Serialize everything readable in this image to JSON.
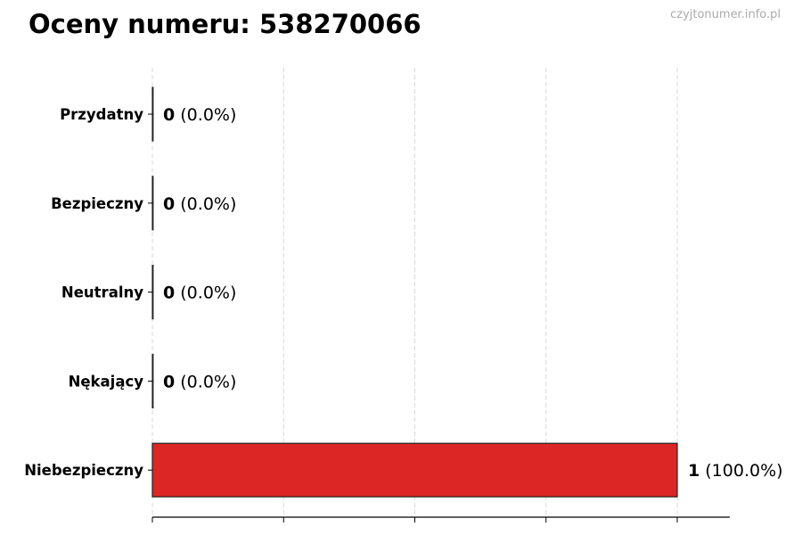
{
  "watermark": "czyjtonumer.info.pl",
  "chart_data": {
    "type": "bar",
    "orientation": "horizontal",
    "title": "Oceny numeru: 538270066",
    "xlabel": "",
    "ylabel": "",
    "categories": [
      "Przydatny",
      "Bezpieczny",
      "Neutralny",
      "Nękający",
      "Niebezpieczny"
    ],
    "values": [
      0,
      0,
      0,
      0,
      1
    ],
    "data_labels": [
      {
        "count": "0",
        "pct": "(0.0%)"
      },
      {
        "count": "0",
        "pct": "(0.0%)"
      },
      {
        "count": "0",
        "pct": "(0.0%)"
      },
      {
        "count": "0",
        "pct": "(0.0%)"
      },
      {
        "count": "1",
        "pct": "(100.0%)"
      }
    ],
    "colors": [
      "#2ca02c",
      "#1f77b4",
      "#7f7f7f",
      "#ff7f0e",
      "#dc2626"
    ],
    "xlim": [
      0,
      1.1
    ],
    "xticks": [
      0,
      0.25,
      0.5,
      0.75,
      1
    ],
    "xtick_labels_shown": false,
    "grid": "x, dashed"
  }
}
